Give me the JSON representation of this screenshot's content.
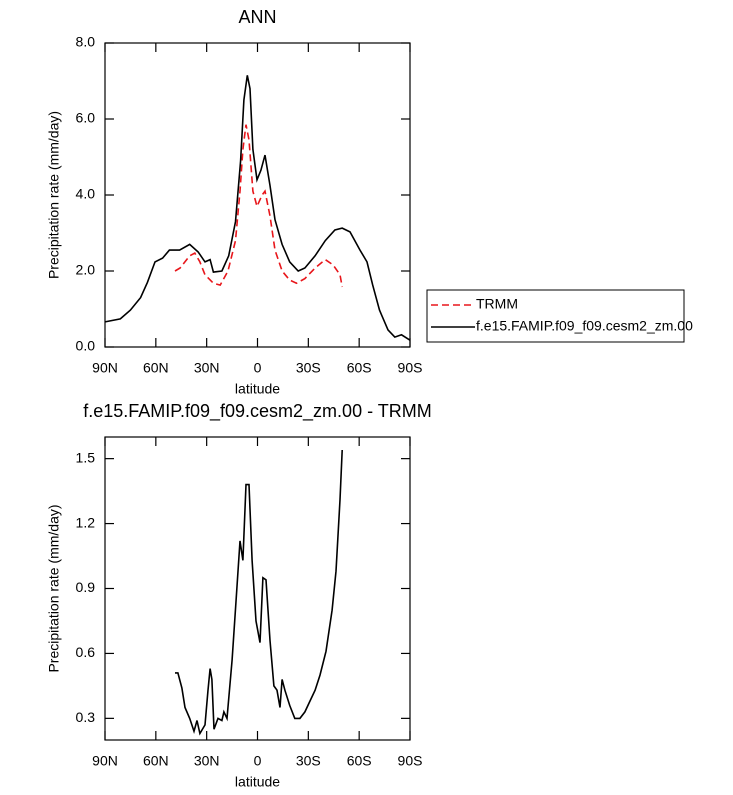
{
  "chart_data": [
    {
      "type": "line",
      "title": "ANN",
      "x_label": "latitude",
      "y_label": "Precipitation rate (mm/day)",
      "xlim": [
        90,
        -90
      ],
      "xticks": [
        {
          "value": 90,
          "label": "90N"
        },
        {
          "value": 60,
          "label": "60N"
        },
        {
          "value": 30,
          "label": "30N"
        },
        {
          "value": 0,
          "label": "0"
        },
        {
          "value": -30,
          "label": "30S"
        },
        {
          "value": -60,
          "label": "60S"
        },
        {
          "value": -90,
          "label": "90S"
        }
      ],
      "ylim": [
        0,
        8
      ],
      "yticks": [
        {
          "value": 0,
          "label": "0.0"
        },
        {
          "value": 2,
          "label": "2.0"
        },
        {
          "value": 4,
          "label": "4.0"
        },
        {
          "value": 6,
          "label": "6.0"
        },
        {
          "value": 8,
          "label": "8.0"
        }
      ],
      "grid": false,
      "legend": "right",
      "series": [
        {
          "name": "TRMM",
          "color": "#e8161b",
          "linestyle": "dashed",
          "x": [
            48.7,
            45.7,
            40,
            37,
            34,
            31,
            26,
            22,
            17.4,
            13,
            10.3,
            8.6,
            6.8,
            5,
            2.7,
            0.3,
            -2.7,
            -4.4,
            -7.4,
            -10.3,
            -14.5,
            -19,
            -23,
            -28,
            -34,
            -40,
            -44.6,
            -48.7,
            -50
          ],
          "values": [
            2.0,
            2.08,
            2.4,
            2.47,
            2.24,
            1.9,
            1.68,
            1.63,
            2.0,
            2.8,
            4.1,
            5.2,
            5.85,
            5.45,
            4.1,
            3.7,
            4.0,
            4.1,
            3.45,
            2.55,
            2.0,
            1.76,
            1.68,
            1.8,
            2.08,
            2.3,
            2.16,
            1.9,
            1.58
          ]
        },
        {
          "name": "f.e15.FAMIP.f09_f09.cesm2_zm.00",
          "color": "#000000",
          "linestyle": "solid",
          "x": [
            90,
            81,
            75,
            69,
            65,
            60.5,
            56,
            52,
            46,
            40,
            35,
            31,
            28,
            26,
            21,
            17,
            13,
            10,
            8,
            6,
            4.4,
            2.7,
            0.3,
            -2,
            -4.4,
            -7.4,
            -10.3,
            -14.5,
            -19,
            -24,
            -28,
            -34,
            -40,
            -45.7,
            -50,
            -54.6,
            -60.5,
            -64.6,
            -68,
            -72,
            -77,
            -81,
            -85,
            -90
          ],
          "values": [
            0.66,
            0.74,
            0.97,
            1.3,
            1.7,
            2.24,
            2.34,
            2.55,
            2.55,
            2.7,
            2.5,
            2.24,
            2.3,
            1.97,
            2.0,
            2.4,
            3.3,
            4.9,
            6.5,
            7.15,
            6.8,
            5.2,
            4.4,
            4.65,
            5.05,
            4.25,
            3.35,
            2.7,
            2.24,
            2.0,
            2.08,
            2.4,
            2.8,
            3.08,
            3.13,
            3.03,
            2.55,
            2.24,
            1.63,
            0.97,
            0.45,
            0.26,
            0.32,
            0.18
          ]
        }
      ]
    },
    {
      "type": "line",
      "title": "f.e15.FAMIP.f09_f09.cesm2_zm.00 - TRMM",
      "x_label": "latitude",
      "y_label": "Precipitation rate (mm/day)",
      "xlim": [
        90,
        -90
      ],
      "xticks": [
        {
          "value": 90,
          "label": "90N"
        },
        {
          "value": 60,
          "label": "60N"
        },
        {
          "value": 30,
          "label": "30N"
        },
        {
          "value": 0,
          "label": "0"
        },
        {
          "value": -30,
          "label": "30S"
        },
        {
          "value": -60,
          "label": "60S"
        },
        {
          "value": -90,
          "label": "90S"
        }
      ],
      "ylim": [
        0.2,
        1.6
      ],
      "yticks": [
        0.3,
        0.6,
        0.9,
        1.2,
        1.5
      ],
      "grid": false,
      "series": [
        {
          "color": "#000000",
          "linestyle": "solid",
          "x": [
            48.7,
            47,
            44.6,
            42.8,
            40,
            37.5,
            35.7,
            34,
            31,
            29.2,
            28,
            26.9,
            25.7,
            23.3,
            21,
            19.8,
            18,
            15,
            12.7,
            10.3,
            8.6,
            6.8,
            5,
            3.2,
            0.9,
            -1.5,
            -3.2,
            -5,
            -7.4,
            -9.7,
            -11.5,
            -13.3,
            -14.5,
            -16.2,
            -19,
            -22,
            -25,
            -28,
            -31,
            -34,
            -36.9,
            -40.4,
            -44,
            -46.3,
            -48.7,
            -50
          ],
          "values": [
            0.51,
            0.51,
            0.44,
            0.35,
            0.3,
            0.24,
            0.29,
            0.23,
            0.27,
            0.43,
            0.53,
            0.48,
            0.25,
            0.3,
            0.29,
            0.33,
            0.3,
            0.57,
            0.84,
            1.12,
            1.03,
            1.38,
            1.38,
            1.03,
            0.75,
            0.65,
            0.95,
            0.94,
            0.66,
            0.45,
            0.43,
            0.35,
            0.48,
            0.43,
            0.36,
            0.3,
            0.3,
            0.33,
            0.38,
            0.43,
            0.5,
            0.61,
            0.8,
            0.98,
            1.31,
            1.54
          ]
        }
      ]
    }
  ]
}
